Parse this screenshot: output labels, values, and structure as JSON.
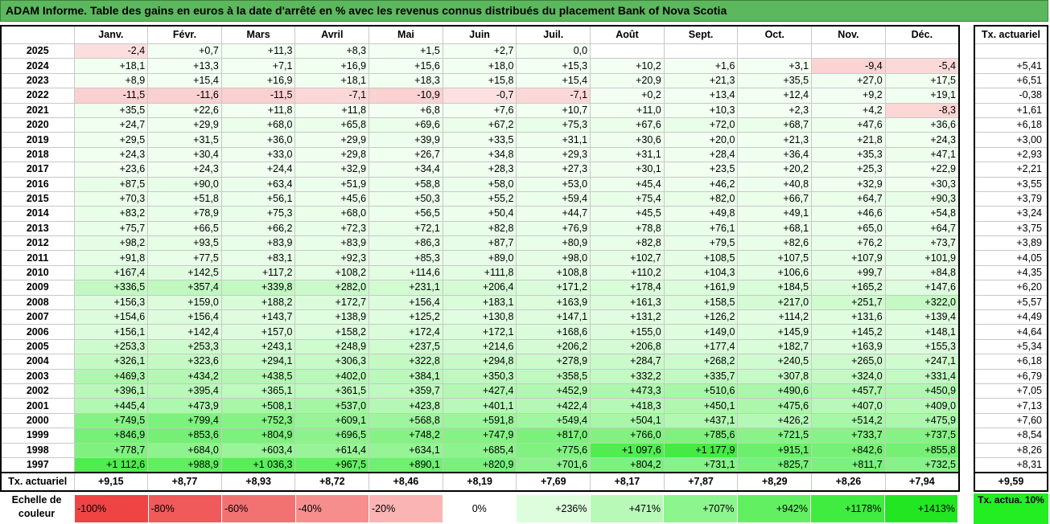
{
  "title": "ADAM Informe. Table des gains en euros à la date d'arrêté en % avec les revenus connus distribués du placement Bank of Nova Scotia",
  "chart_data": {
    "type": "table",
    "columns": [
      "Janv.",
      "Févr.",
      "Mars",
      "Avril",
      "Mai",
      "Juin",
      "Juil.",
      "Août",
      "Sept.",
      "Oct.",
      "Nov.",
      "Déc."
    ],
    "side_header": "Tx. actuariel",
    "rows": [
      {
        "year": "2025",
        "values": [
          "-2,4",
          "+0,7",
          "+11,3",
          "+8,3",
          "+1,5",
          "+2,7",
          "0,0",
          "",
          "",
          "",
          "",
          ""
        ],
        "rate": ""
      },
      {
        "year": "2024",
        "values": [
          "+18,1",
          "+13,3",
          "+7,1",
          "+16,9",
          "+15,6",
          "+18,0",
          "+15,3",
          "+10,2",
          "+1,6",
          "+3,1",
          "-9,4",
          "-5,4"
        ],
        "rate": "+5,41"
      },
      {
        "year": "2023",
        "values": [
          "+8,9",
          "+15,4",
          "+16,9",
          "+18,1",
          "+18,3",
          "+15,8",
          "+15,4",
          "+20,9",
          "+21,3",
          "+35,5",
          "+27,0",
          "+17,5"
        ],
        "rate": "+6,51"
      },
      {
        "year": "2022",
        "values": [
          "-11,5",
          "-11,6",
          "-11,5",
          "-7,1",
          "-10,9",
          "-0,7",
          "-7,1",
          "+0,2",
          "+13,4",
          "+12,4",
          "+9,2",
          "+19,1"
        ],
        "rate": "-0,38"
      },
      {
        "year": "2021",
        "values": [
          "+35,5",
          "+22,6",
          "+11,8",
          "+11,8",
          "+6,8",
          "+7,6",
          "+10,7",
          "+11,0",
          "+10,3",
          "+2,3",
          "+4,2",
          "-8,3"
        ],
        "rate": "+1,61"
      },
      {
        "year": "2020",
        "values": [
          "+24,7",
          "+29,9",
          "+68,0",
          "+65,8",
          "+69,6",
          "+67,2",
          "+75,3",
          "+67,6",
          "+72,0",
          "+68,7",
          "+47,6",
          "+36,6"
        ],
        "rate": "+6,18"
      },
      {
        "year": "2019",
        "values": [
          "+29,5",
          "+31,5",
          "+36,0",
          "+29,9",
          "+39,9",
          "+33,5",
          "+31,1",
          "+30,6",
          "+20,0",
          "+21,3",
          "+21,8",
          "+24,3"
        ],
        "rate": "+3,00"
      },
      {
        "year": "2018",
        "values": [
          "+24,3",
          "+30,4",
          "+33,0",
          "+29,8",
          "+26,7",
          "+34,8",
          "+29,3",
          "+31,1",
          "+28,4",
          "+36,4",
          "+35,3",
          "+47,1"
        ],
        "rate": "+2,93"
      },
      {
        "year": "2017",
        "values": [
          "+23,6",
          "+24,3",
          "+24,4",
          "+32,9",
          "+34,4",
          "+28,3",
          "+27,3",
          "+30,1",
          "+23,5",
          "+20,2",
          "+25,3",
          "+22,9"
        ],
        "rate": "+2,21"
      },
      {
        "year": "2016",
        "values": [
          "+87,5",
          "+90,0",
          "+63,4",
          "+51,9",
          "+58,8",
          "+58,0",
          "+53,0",
          "+45,4",
          "+46,2",
          "+40,8",
          "+32,9",
          "+30,3"
        ],
        "rate": "+3,55"
      },
      {
        "year": "2015",
        "values": [
          "+70,3",
          "+51,8",
          "+56,1",
          "+45,6",
          "+50,3",
          "+55,2",
          "+59,4",
          "+75,4",
          "+82,0",
          "+66,7",
          "+64,7",
          "+90,3"
        ],
        "rate": "+3,79"
      },
      {
        "year": "2014",
        "values": [
          "+83,2",
          "+78,9",
          "+75,3",
          "+68,0",
          "+56,5",
          "+50,4",
          "+44,7",
          "+45,5",
          "+49,8",
          "+49,1",
          "+46,6",
          "+54,8"
        ],
        "rate": "+3,24"
      },
      {
        "year": "2013",
        "values": [
          "+75,7",
          "+66,5",
          "+66,2",
          "+72,3",
          "+72,1",
          "+82,8",
          "+76,9",
          "+78,8",
          "+76,1",
          "+68,1",
          "+65,0",
          "+64,7"
        ],
        "rate": "+3,75"
      },
      {
        "year": "2012",
        "values": [
          "+98,2",
          "+93,5",
          "+83,9",
          "+83,9",
          "+86,3",
          "+87,7",
          "+80,9",
          "+82,8",
          "+79,5",
          "+82,6",
          "+76,2",
          "+73,7"
        ],
        "rate": "+3,89"
      },
      {
        "year": "2011",
        "values": [
          "+91,8",
          "+77,5",
          "+83,1",
          "+92,3",
          "+85,3",
          "+89,0",
          "+98,0",
          "+102,7",
          "+108,5",
          "+107,5",
          "+107,9",
          "+101,9"
        ],
        "rate": "+4,05"
      },
      {
        "year": "2010",
        "values": [
          "+167,4",
          "+142,5",
          "+117,2",
          "+108,2",
          "+114,6",
          "+111,8",
          "+108,8",
          "+110,2",
          "+104,3",
          "+106,6",
          "+99,7",
          "+84,8"
        ],
        "rate": "+4,35"
      },
      {
        "year": "2009",
        "values": [
          "+336,5",
          "+357,4",
          "+339,8",
          "+282,0",
          "+231,1",
          "+206,4",
          "+171,2",
          "+178,4",
          "+161,9",
          "+184,5",
          "+165,2",
          "+147,6"
        ],
        "rate": "+6,20"
      },
      {
        "year": "2008",
        "values": [
          "+156,3",
          "+159,0",
          "+188,2",
          "+172,7",
          "+156,4",
          "+183,1",
          "+163,9",
          "+161,3",
          "+158,5",
          "+217,0",
          "+251,7",
          "+322,0"
        ],
        "rate": "+5,57"
      },
      {
        "year": "2007",
        "values": [
          "+154,6",
          "+156,4",
          "+143,7",
          "+138,9",
          "+125,2",
          "+130,8",
          "+147,1",
          "+131,2",
          "+126,2",
          "+114,2",
          "+131,6",
          "+139,4"
        ],
        "rate": "+4,49"
      },
      {
        "year": "2006",
        "values": [
          "+156,1",
          "+142,4",
          "+157,0",
          "+158,2",
          "+172,4",
          "+172,1",
          "+168,6",
          "+155,0",
          "+149,0",
          "+145,9",
          "+145,2",
          "+148,1"
        ],
        "rate": "+4,64"
      },
      {
        "year": "2005",
        "values": [
          "+253,3",
          "+253,3",
          "+243,1",
          "+248,9",
          "+237,5",
          "+214,6",
          "+206,2",
          "+206,8",
          "+177,4",
          "+182,7",
          "+163,9",
          "+155,3"
        ],
        "rate": "+5,34"
      },
      {
        "year": "2004",
        "values": [
          "+326,1",
          "+323,6",
          "+294,1",
          "+306,3",
          "+322,8",
          "+294,8",
          "+278,9",
          "+284,7",
          "+268,2",
          "+240,5",
          "+265,0",
          "+247,1"
        ],
        "rate": "+6,18"
      },
      {
        "year": "2003",
        "values": [
          "+469,3",
          "+434,2",
          "+438,5",
          "+402,0",
          "+384,1",
          "+350,3",
          "+358,5",
          "+332,2",
          "+335,7",
          "+307,8",
          "+324,0",
          "+331,4"
        ],
        "rate": "+6,79"
      },
      {
        "year": "2002",
        "values": [
          "+396,1",
          "+395,4",
          "+365,1",
          "+361,5",
          "+359,7",
          "+427,4",
          "+452,9",
          "+473,3",
          "+510,6",
          "+490,6",
          "+457,7",
          "+450,9"
        ],
        "rate": "+7,05"
      },
      {
        "year": "2001",
        "values": [
          "+445,4",
          "+473,9",
          "+508,1",
          "+537,0",
          "+423,8",
          "+401,1",
          "+422,4",
          "+418,3",
          "+450,1",
          "+475,6",
          "+407,0",
          "+409,0"
        ],
        "rate": "+7,13"
      },
      {
        "year": "2000",
        "values": [
          "+749,5",
          "+799,4",
          "+752,3",
          "+609,1",
          "+568,8",
          "+591,8",
          "+549,4",
          "+504,1",
          "+437,1",
          "+426,2",
          "+514,2",
          "+475,9"
        ],
        "rate": "+7,60"
      },
      {
        "year": "1999",
        "values": [
          "+846,9",
          "+853,6",
          "+804,9",
          "+696,5",
          "+748,2",
          "+747,9",
          "+817,0",
          "+766,0",
          "+785,6",
          "+721,5",
          "+733,7",
          "+737,5"
        ],
        "rate": "+8,54"
      },
      {
        "year": "1998",
        "values": [
          "+778,7",
          "+684,0",
          "+603,4",
          "+614,4",
          "+634,1",
          "+685,4",
          "+775,6",
          "+1 097,6",
          "+1 177,9",
          "+915,1",
          "+842,6",
          "+855,8"
        ],
        "rate": "+8,26"
      },
      {
        "year": "1997",
        "values": [
          "+1 112,6",
          "+988,9",
          "+1 036,3",
          "+967,5",
          "+890,1",
          "+820,9",
          "+701,6",
          "+804,2",
          "+731,1",
          "+825,7",
          "+811,7",
          "+732,5"
        ],
        "rate": "+8,31"
      }
    ],
    "footer_label": "Tx. actuariel",
    "footer_values": [
      "+9,15",
      "+8,77",
      "+8,93",
      "+8,72",
      "+8,46",
      "+8,19",
      "+7,69",
      "+8,17",
      "+7,87",
      "+8,29",
      "+8,26",
      "+7,94"
    ],
    "footer_total": "+9,59",
    "scale": {
      "label": "Echelle de couleur",
      "steps": [
        {
          "text": "-100%",
          "color": "#ee4444",
          "align": "left"
        },
        {
          "text": "-80%",
          "color": "#f05a5a",
          "align": "left"
        },
        {
          "text": "-60%",
          "color": "#f27272",
          "align": "left"
        },
        {
          "text": "-40%",
          "color": "#f68e8e",
          "align": "left"
        },
        {
          "text": "-20%",
          "color": "#fab4b4",
          "align": "left"
        },
        {
          "text": "0%",
          "color": "#ffffff",
          "align": "center"
        },
        {
          "text": "+236%",
          "color": "#ddfddd",
          "align": "right"
        },
        {
          "text": "+471%",
          "color": "#b8f9b8",
          "align": "right"
        },
        {
          "text": "+707%",
          "color": "#8df58d",
          "align": "right"
        },
        {
          "text": "+942%",
          "color": "#62f062",
          "align": "right"
        },
        {
          "text": "+1178%",
          "color": "#3fec3f",
          "align": "right"
        },
        {
          "text": "+1413%",
          "color": "#22e622",
          "align": "right"
        }
      ],
      "tx_label": "Tx. actua. 10%",
      "tx_color": "#22ee22"
    }
  }
}
